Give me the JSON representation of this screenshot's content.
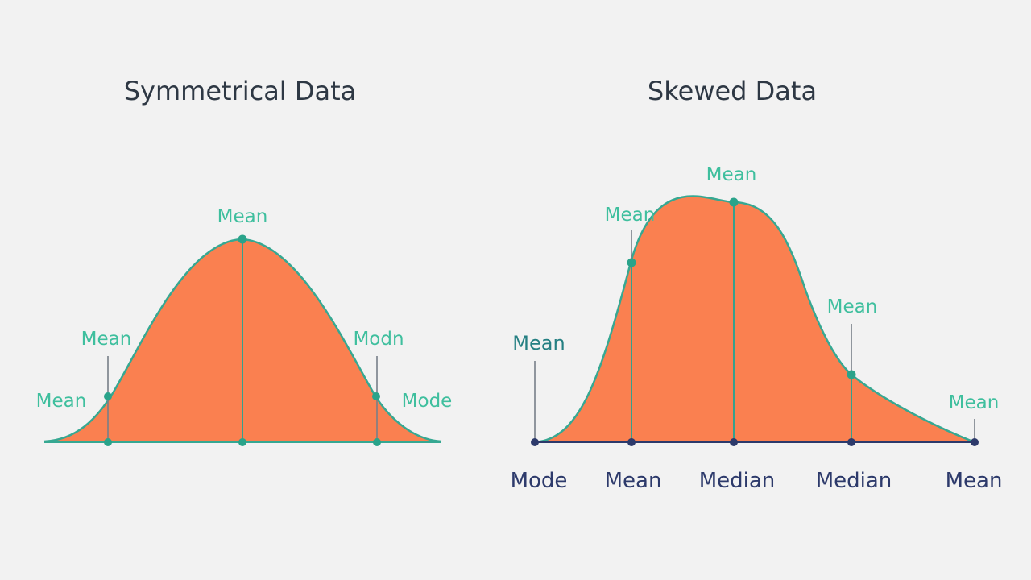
{
  "colors": {
    "background": "#f2f2f2",
    "fill": "#fa8050",
    "outline": "#36a892",
    "teal_label": "#3fbf9e",
    "navy": "#2d3a6b",
    "title": "#2e3844"
  },
  "symmetrical": {
    "title": "Symmetrical Data",
    "labels": {
      "top": "Mean",
      "left_upper": "Mean",
      "left_lower": "Mean",
      "right_upper": "Modn",
      "right_lower": "Mode"
    }
  },
  "skewed": {
    "title": "Skewed Data",
    "labels": {
      "peak": "Mean",
      "rise": "Mean",
      "base_left": "Mean",
      "tail": "Mean",
      "end": "Mean"
    },
    "axis_labels": [
      "Mode",
      "Mean",
      "Median",
      "Median",
      "Mean"
    ]
  }
}
